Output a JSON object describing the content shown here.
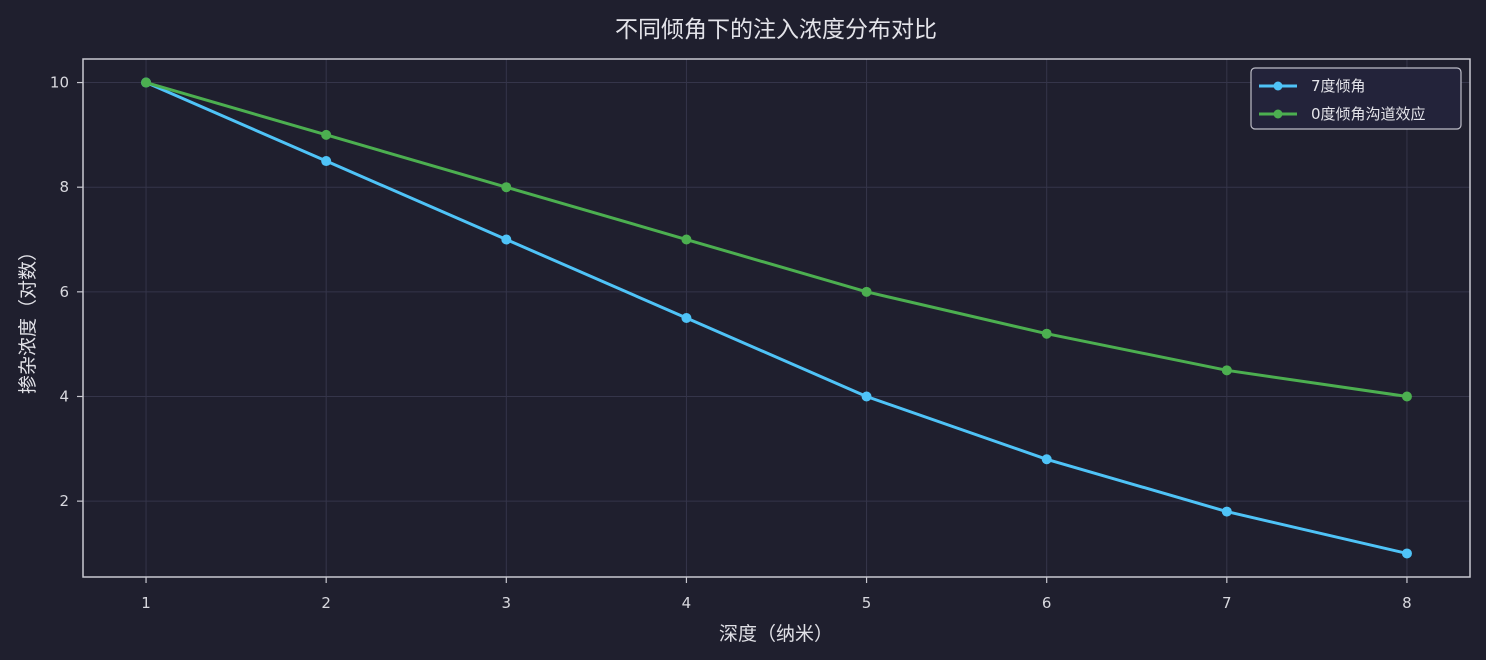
{
  "chart_data": {
    "type": "line",
    "title": "不同倾角下的注入浓度分布对比",
    "xlabel": "深度（纳米）",
    "ylabel": "掺杂浓度（对数）",
    "x": [
      1,
      2,
      3,
      4,
      5,
      6,
      7,
      8
    ],
    "x_ticks": [
      1,
      2,
      3,
      4,
      5,
      6,
      7,
      8
    ],
    "y_ticks": [
      2,
      4,
      6,
      8,
      10
    ],
    "xlim": [
      0.65,
      8.35
    ],
    "ylim": [
      0.55,
      10.45
    ],
    "grid": true,
    "legend_position": "top-right",
    "series": [
      {
        "name": "7度倾角",
        "color": "#4fc3f7",
        "values": [
          10,
          8.5,
          7,
          5.5,
          4,
          2.8,
          1.8,
          1
        ]
      },
      {
        "name": "0度倾角沟道效应",
        "color": "#4caf50",
        "values": [
          10,
          9,
          8,
          7,
          6,
          5.2,
          4.5,
          4
        ]
      }
    ]
  },
  "colors": {
    "background": "#1f1f2e",
    "axes_edge": "#c8c8d0",
    "grid": "#35354a",
    "text": "#e0e0e6"
  }
}
